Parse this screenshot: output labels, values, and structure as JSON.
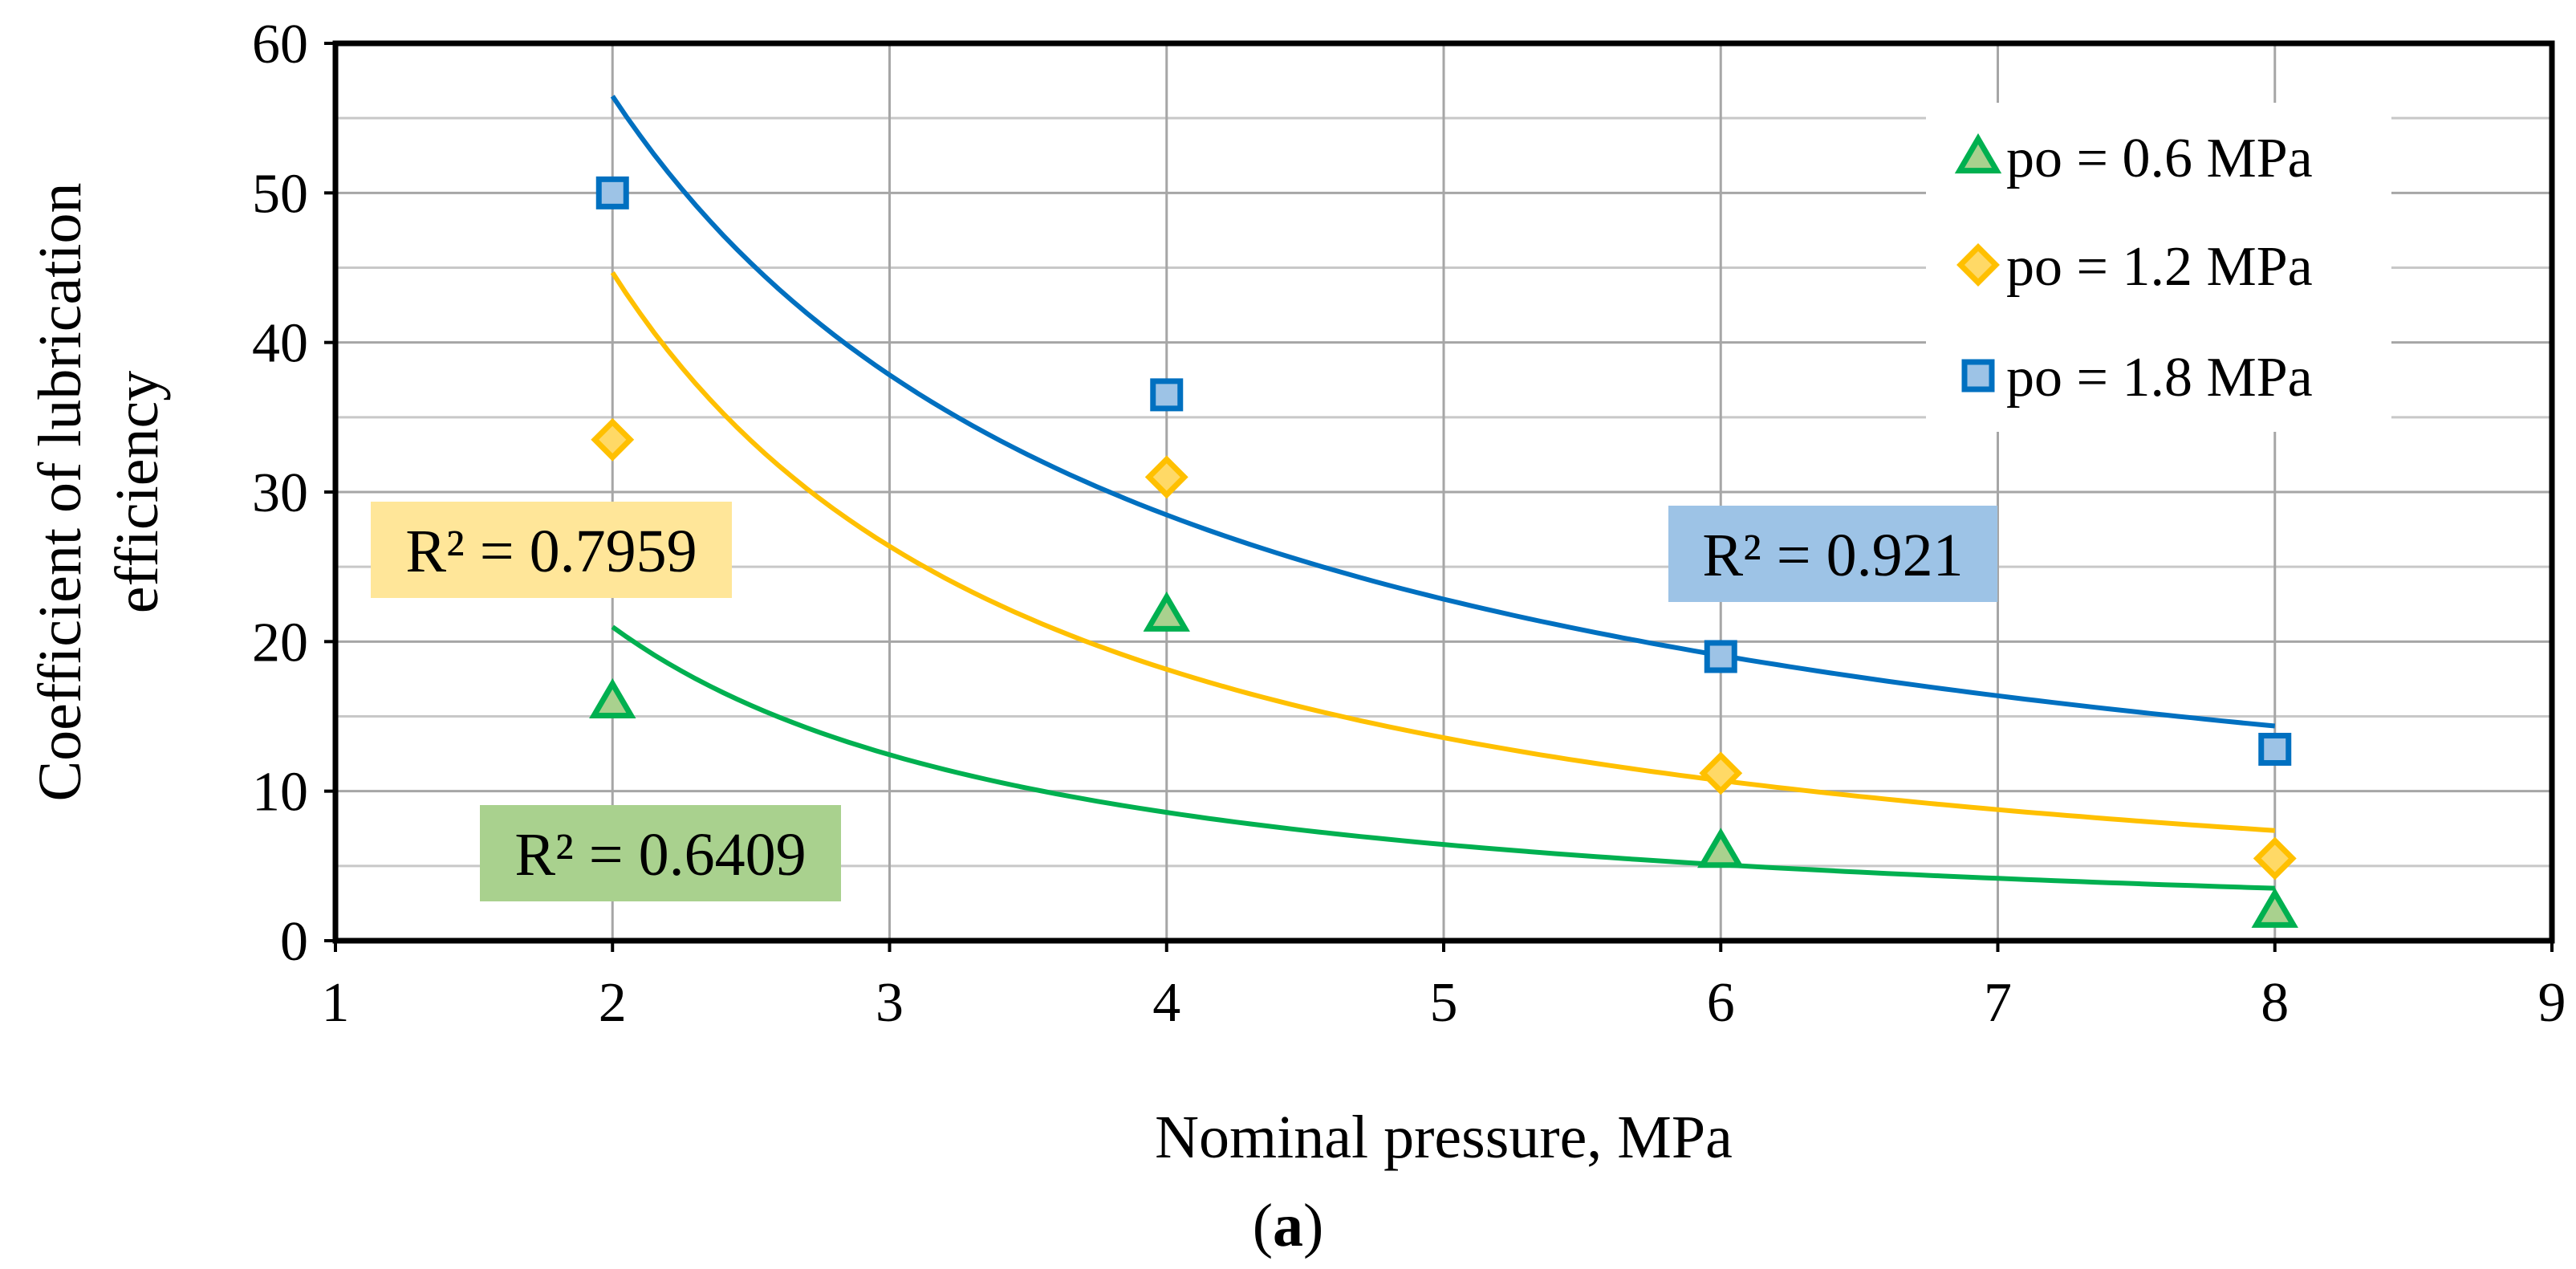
{
  "chart_data": {
    "type": "scatter",
    "title": "",
    "xlabel": "Nominal pressure, MPa",
    "ylabel_lines": [
      "Coefficient of  lubrication",
      "efficiency"
    ],
    "panel_label": "(a)",
    "panel_label_letter": "a",
    "xlim": [
      1,
      9
    ],
    "ylim": [
      0,
      60
    ],
    "xticks": [
      1,
      2,
      3,
      4,
      5,
      6,
      7,
      8,
      9
    ],
    "yticks": [
      0,
      10,
      20,
      30,
      40,
      50,
      60
    ],
    "grid": true,
    "legend_position": "top-right",
    "series": [
      {
        "name": "po = 0.6 MPa",
        "legend_label": "po =  0.6 MPa",
        "marker": "triangle",
        "color": "#00B050",
        "marker_fill": "#A9D18E",
        "x": [
          2,
          4,
          6,
          8
        ],
        "y": [
          16,
          21.8,
          6,
          2
        ],
        "trendline": {
          "type": "power",
          "a": 51.3,
          "b": -1.29,
          "r2_label": "R² = 0.6409",
          "box_color": "#A9D18E"
        }
      },
      {
        "name": "po = 1.2 MPa",
        "legend_label": "po = 1.2 MPa",
        "marker": "diamond",
        "color": "#FFC000",
        "marker_fill": "#FFD966",
        "x": [
          2,
          4,
          6,
          8
        ],
        "y": [
          33.5,
          31,
          11.2,
          5.5
        ],
        "trendline": {
          "type": "power",
          "a": 110,
          "b": -1.3,
          "r2_label": "R² = 0.7959",
          "box_color": "#FFE699"
        }
      },
      {
        "name": "po = 1.8 MPa",
        "legend_label": "po = 1.8 MPa",
        "marker": "square",
        "color": "#0070C0",
        "marker_fill": "#9DC3E6",
        "x": [
          2,
          4,
          6,
          8
        ],
        "y": [
          50,
          36.5,
          19,
          12.8
        ],
        "trendline": {
          "type": "power",
          "a": 112,
          "b": -0.988,
          "r2_label": "R² = 0.921",
          "box_color": "#9DC3E6"
        }
      }
    ]
  }
}
